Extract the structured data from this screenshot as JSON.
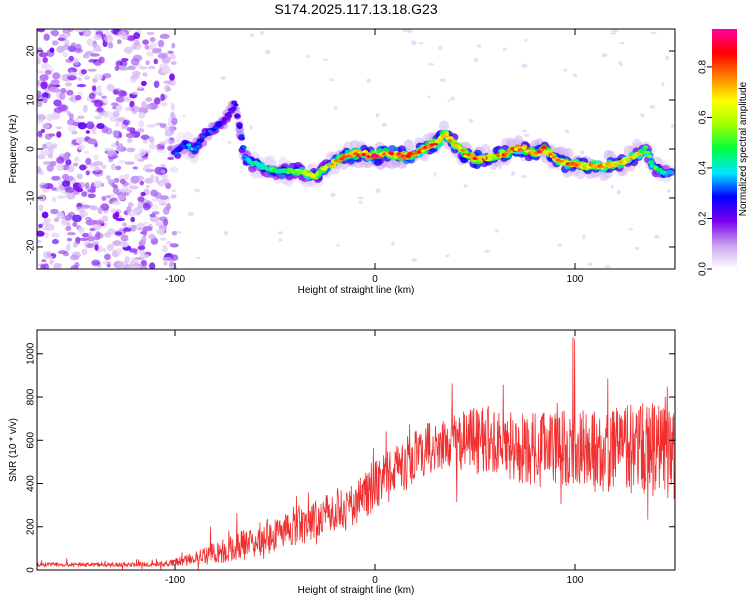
{
  "figure_title": "S174.2025.117.13.18.G23",
  "chart_data": [
    {
      "type": "heatmap",
      "xlabel": "Height of straight line (km)",
      "ylabel": "Frequency (Hz)",
      "xlim": [
        -169,
        150
      ],
      "ylim": [
        -24.5,
        24.5
      ],
      "xticks": [
        -100,
        0,
        100
      ],
      "yticks": [
        -20,
        -10,
        0,
        10,
        20
      ],
      "colorbar": {
        "label": "Normalized spectral amplitude",
        "range": [
          0.0,
          0.95
        ],
        "ticks": [
          0.0,
          0.2,
          0.4,
          0.6,
          0.8
        ],
        "tick_labels": [
          "0.0",
          "0.2",
          "0.4",
          "0.6",
          "0.8"
        ],
        "colormap": [
          "#ffffff",
          "#c8a0f0",
          "#7a00f0",
          "#0000ff",
          "#00e8ff",
          "#00ff40",
          "#a0ff00",
          "#ffff00",
          "#ff8000",
          "#ff0000",
          "#ff00a0"
        ]
      },
      "noise_region_x": [
        -169,
        -100
      ],
      "ridge": {
        "x": [
          -100,
          -95,
          -90,
          -85,
          -80,
          -75,
          -70,
          -65,
          -60,
          -55,
          -50,
          -45,
          -40,
          -35,
          -30,
          -25,
          -20,
          -15,
          -10,
          -5,
          0,
          5,
          10,
          15,
          20,
          25,
          30,
          35,
          40,
          45,
          50,
          55,
          60,
          65,
          70,
          75,
          80,
          85,
          90,
          95,
          100,
          105,
          110,
          115,
          120,
          125,
          130,
          135,
          140,
          145,
          148
        ],
        "freq": [
          -1,
          1,
          0,
          3,
          4,
          6,
          9,
          -2,
          -3,
          -4,
          -4.5,
          -4.5,
          -4.5,
          -5,
          -5.5,
          -4,
          -2.5,
          -1.5,
          -1,
          -1,
          -1.5,
          -1,
          -1,
          -1.5,
          -1,
          0,
          1,
          3,
          1,
          -1,
          -2,
          -2,
          -1.5,
          -1,
          0,
          0,
          -1,
          0,
          -2,
          -3,
          -3,
          -3.5,
          -3.5,
          -3.5,
          -3,
          -2.5,
          -1.5,
          0,
          -4,
          -5,
          -5
        ],
        "amplitude": [
          0.3,
          0.35,
          0.35,
          0.3,
          0.3,
          0.25,
          0.25,
          0.4,
          0.45,
          0.45,
          0.5,
          0.5,
          0.55,
          0.6,
          0.6,
          0.6,
          0.7,
          0.75,
          0.8,
          0.8,
          0.85,
          0.8,
          0.85,
          0.85,
          0.8,
          0.75,
          0.8,
          0.7,
          0.75,
          0.75,
          0.8,
          0.75,
          0.7,
          0.75,
          0.8,
          0.75,
          0.8,
          0.85,
          0.75,
          0.75,
          0.8,
          0.75,
          0.75,
          0.8,
          0.75,
          0.7,
          0.7,
          0.55,
          0.5,
          0.45,
          0.4
        ]
      }
    },
    {
      "type": "line",
      "xlabel": "Height of straight line (km)",
      "ylabel": "SNR (10 * v/v)",
      "xlim": [
        -169,
        150
      ],
      "ylim": [
        0,
        1110
      ],
      "xticks": [
        -100,
        0,
        100
      ],
      "yticks": [
        0,
        200,
        400,
        600,
        800,
        1000
      ],
      "series": [
        {
          "color": "#f03030",
          "trend_x": [
            -169,
            -120,
            -105,
            -95,
            -85,
            -75,
            -65,
            -55,
            -45,
            -35,
            -25,
            -15,
            -5,
            5,
            15,
            25,
            35,
            45,
            55,
            65,
            75,
            85,
            95,
            105,
            115,
            125,
            135,
            145,
            150
          ],
          "trend_y": [
            25,
            25,
            28,
            45,
            65,
            90,
            120,
            150,
            190,
            220,
            250,
            280,
            350,
            420,
            480,
            560,
            580,
            600,
            600,
            580,
            560,
            560,
            560,
            550,
            550,
            560,
            560,
            540,
            540
          ],
          "spread_y": [
            10,
            10,
            12,
            25,
            40,
            60,
            70,
            80,
            90,
            95,
            95,
            100,
            110,
            120,
            120,
            120,
            120,
            150,
            160,
            170,
            170,
            180,
            190,
            190,
            200,
            200,
            220,
            220,
            220
          ]
        }
      ]
    }
  ]
}
